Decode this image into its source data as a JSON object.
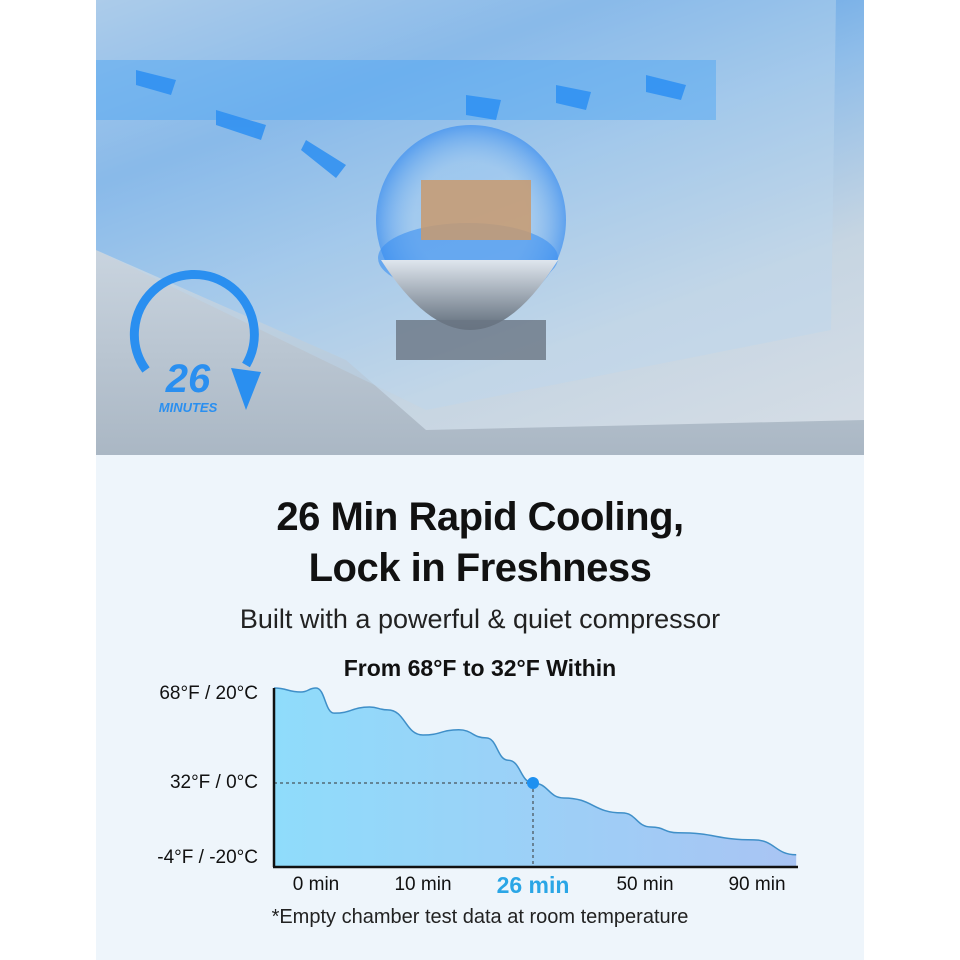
{
  "badge": {
    "number": "26",
    "unit": "MINUTES",
    "color": "#2a8ff0"
  },
  "heading": {
    "line1": "26 Min Rapid Cooling,",
    "line2": "Lock in Freshness"
  },
  "subheading": "Built with a powerful & quiet compressor",
  "chart_data": {
    "type": "area",
    "title": "From 68°F to 32°F Within",
    "y_tick_labels": [
      "68°F / 20°C",
      "32°F / 0°C",
      "-4°F / -20°C"
    ],
    "y_ticks_c": [
      20,
      0,
      -20
    ],
    "x_tick_labels": [
      "0 min",
      "10 min",
      "26 min",
      "50 min",
      "90 min"
    ],
    "x_ticks_min": [
      0,
      10,
      26,
      50,
      90
    ],
    "highlight": {
      "x": 26,
      "y": 0,
      "label": "26 min"
    },
    "points": [
      [
        0,
        20
      ],
      [
        1.7,
        14.7
      ],
      [
        5,
        16
      ],
      [
        6.7,
        15.4
      ],
      [
        10,
        10.1
      ],
      [
        15.2,
        11.2
      ],
      [
        19.2,
        9.5
      ],
      [
        22.4,
        4.8
      ],
      [
        26,
        0
      ],
      [
        32.6,
        -3.6
      ],
      [
        45.1,
        -7.2
      ],
      [
        52.1,
        -10.6
      ],
      [
        61.8,
        -12
      ],
      [
        88.9,
        -13.7
      ],
      [
        104,
        -17.3
      ]
    ],
    "fill_colors": [
      "#8fdcfb",
      "#a9c4f3"
    ],
    "line_color": "#3f8fc8",
    "grid": false
  },
  "footnote": "*Empty chamber test data at room temperature"
}
